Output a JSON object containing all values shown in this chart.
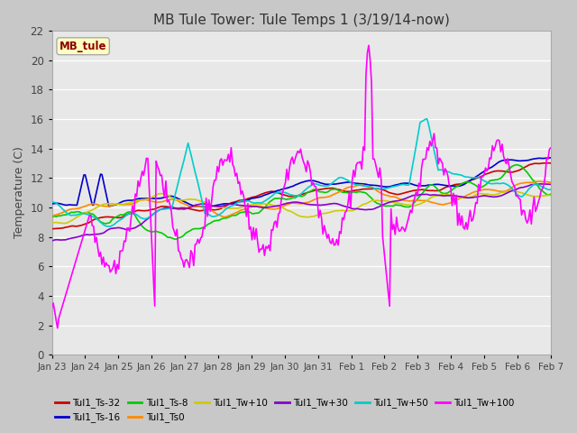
{
  "title": "MB Tule Tower: Tule Temps 1 (3/19/14-now)",
  "ylabel": "Temperature (C)",
  "ylim": [
    0,
    22
  ],
  "yticks": [
    0,
    2,
    4,
    6,
    8,
    10,
    12,
    14,
    16,
    18,
    20,
    22
  ],
  "fig_bg": "#c8c8c8",
  "plot_bg": "#e8e8e8",
  "legend_label": "MB_tule",
  "legend_bg": "#ffffc0",
  "legend_border": "#8b0000",
  "series_colors": {
    "Tul1_Ts-32": "#cc0000",
    "Tul1_Ts-16": "#0000cc",
    "Tul1_Ts-8": "#00cc00",
    "Tul1_Ts0": "#ff8800",
    "Tul1_Tw+10": "#cccc00",
    "Tul1_Tw+30": "#8800cc",
    "Tul1_Tw+50": "#00cccc",
    "Tul1_Tw+100": "#ff00ff"
  },
  "x_tick_labels": [
    "Jan 23",
    "Jan 24",
    "Jan 25",
    "Jan 26",
    "Jan 27",
    "Jan 28",
    "Jan 29",
    "Jan 30",
    "Jan 31",
    "Feb 1",
    "Feb 2",
    "Feb 3",
    "Feb 4",
    "Feb 5",
    "Feb 6",
    "Feb 7"
  ],
  "n_days": 15,
  "n_points": 360
}
